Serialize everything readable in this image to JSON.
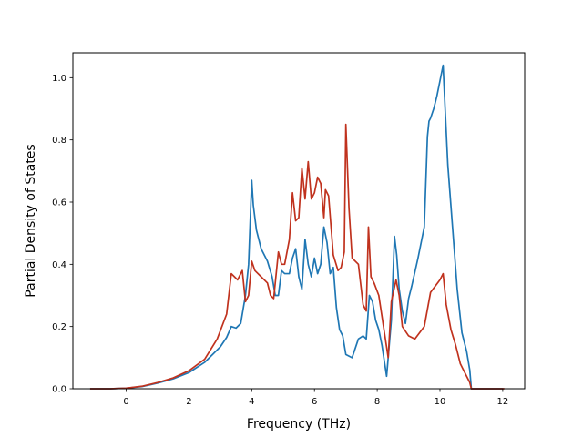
{
  "chart_data": {
    "type": "line",
    "title": "",
    "xlabel": "Frequency (THz)",
    "ylabel": "Partial Density of States",
    "xlim": [
      -1.7,
      12.7
    ],
    "ylim": [
      0.0,
      1.08
    ],
    "xticks": [
      0,
      2,
      4,
      6,
      8,
      10,
      12
    ],
    "yticks": [
      0.0,
      0.2,
      0.4,
      0.6,
      0.8,
      1.0
    ],
    "xtick_labels": [
      "0",
      "2",
      "4",
      "6",
      "8",
      "10",
      "12"
    ],
    "ytick_labels": [
      "0.0",
      "0.2",
      "0.4",
      "0.6",
      "0.8",
      "1.0"
    ],
    "grid": false,
    "legend": "none",
    "series": [
      {
        "color": "#1f77b4",
        "x": [
          -1.15,
          -0.5,
          0,
          0.5,
          1.0,
          1.5,
          2.0,
          2.5,
          3.0,
          3.2,
          3.35,
          3.5,
          3.65,
          3.8,
          3.9,
          4.0,
          4.05,
          4.15,
          4.3,
          4.5,
          4.65,
          4.75,
          4.85,
          4.95,
          5.05,
          5.2,
          5.3,
          5.4,
          5.5,
          5.6,
          5.7,
          5.8,
          5.9,
          6.0,
          6.1,
          6.2,
          6.3,
          6.4,
          6.5,
          6.6,
          6.7,
          6.8,
          6.9,
          7.0,
          7.2,
          7.4,
          7.55,
          7.65,
          7.75,
          7.85,
          7.95,
          8.05,
          8.15,
          8.3,
          8.45,
          8.55,
          8.62,
          8.7,
          8.8,
          8.9,
          9.0,
          9.1,
          9.3,
          9.5,
          9.6,
          9.65,
          9.7,
          9.8,
          9.9,
          10.0,
          10.1,
          10.15,
          10.25,
          10.4,
          10.55,
          10.7,
          10.85,
          10.95,
          11.0,
          11.5,
          12.0
        ],
        "y": [
          0.0,
          0.0,
          0.002,
          0.007,
          0.018,
          0.032,
          0.052,
          0.085,
          0.135,
          0.165,
          0.2,
          0.195,
          0.21,
          0.3,
          0.4,
          0.67,
          0.59,
          0.51,
          0.45,
          0.41,
          0.36,
          0.3,
          0.3,
          0.38,
          0.37,
          0.37,
          0.42,
          0.45,
          0.36,
          0.32,
          0.48,
          0.4,
          0.36,
          0.42,
          0.37,
          0.4,
          0.52,
          0.47,
          0.37,
          0.39,
          0.26,
          0.19,
          0.17,
          0.11,
          0.1,
          0.16,
          0.17,
          0.16,
          0.3,
          0.28,
          0.22,
          0.19,
          0.14,
          0.04,
          0.22,
          0.49,
          0.43,
          0.32,
          0.25,
          0.21,
          0.29,
          0.33,
          0.42,
          0.52,
          0.81,
          0.86,
          0.87,
          0.9,
          0.94,
          0.99,
          1.04,
          0.93,
          0.72,
          0.52,
          0.32,
          0.18,
          0.12,
          0.06,
          0.0,
          0.0,
          0.0
        ]
      },
      {
        "color": "#c0321e",
        "x": [
          -1.15,
          -0.5,
          0,
          0.5,
          1.0,
          1.5,
          2.0,
          2.5,
          2.9,
          3.2,
          3.35,
          3.45,
          3.55,
          3.7,
          3.8,
          3.9,
          4.0,
          4.1,
          4.3,
          4.5,
          4.6,
          4.7,
          4.85,
          4.95,
          5.05,
          5.2,
          5.3,
          5.4,
          5.5,
          5.6,
          5.7,
          5.8,
          5.9,
          6.0,
          6.1,
          6.2,
          6.3,
          6.35,
          6.45,
          6.6,
          6.75,
          6.85,
          6.95,
          7.0,
          7.1,
          7.2,
          7.4,
          7.55,
          7.65,
          7.72,
          7.8,
          7.9,
          8.05,
          8.2,
          8.35,
          8.45,
          8.6,
          8.7,
          8.8,
          9.0,
          9.2,
          9.5,
          9.7,
          10.0,
          10.1,
          10.2,
          10.35,
          10.5,
          10.65,
          10.8,
          10.95,
          11.0,
          11.5,
          12.05
        ],
        "y": [
          0.0,
          0.0,
          0.002,
          0.008,
          0.02,
          0.035,
          0.058,
          0.095,
          0.16,
          0.24,
          0.37,
          0.36,
          0.35,
          0.38,
          0.28,
          0.3,
          0.41,
          0.38,
          0.36,
          0.34,
          0.3,
          0.29,
          0.44,
          0.4,
          0.4,
          0.48,
          0.63,
          0.54,
          0.55,
          0.71,
          0.61,
          0.73,
          0.61,
          0.63,
          0.68,
          0.66,
          0.55,
          0.64,
          0.62,
          0.43,
          0.38,
          0.39,
          0.44,
          0.85,
          0.58,
          0.42,
          0.4,
          0.27,
          0.25,
          0.52,
          0.36,
          0.34,
          0.3,
          0.2,
          0.1,
          0.28,
          0.35,
          0.3,
          0.2,
          0.17,
          0.16,
          0.2,
          0.31,
          0.35,
          0.37,
          0.27,
          0.19,
          0.14,
          0.08,
          0.05,
          0.02,
          0.0,
          0.0,
          0.0
        ]
      }
    ]
  }
}
